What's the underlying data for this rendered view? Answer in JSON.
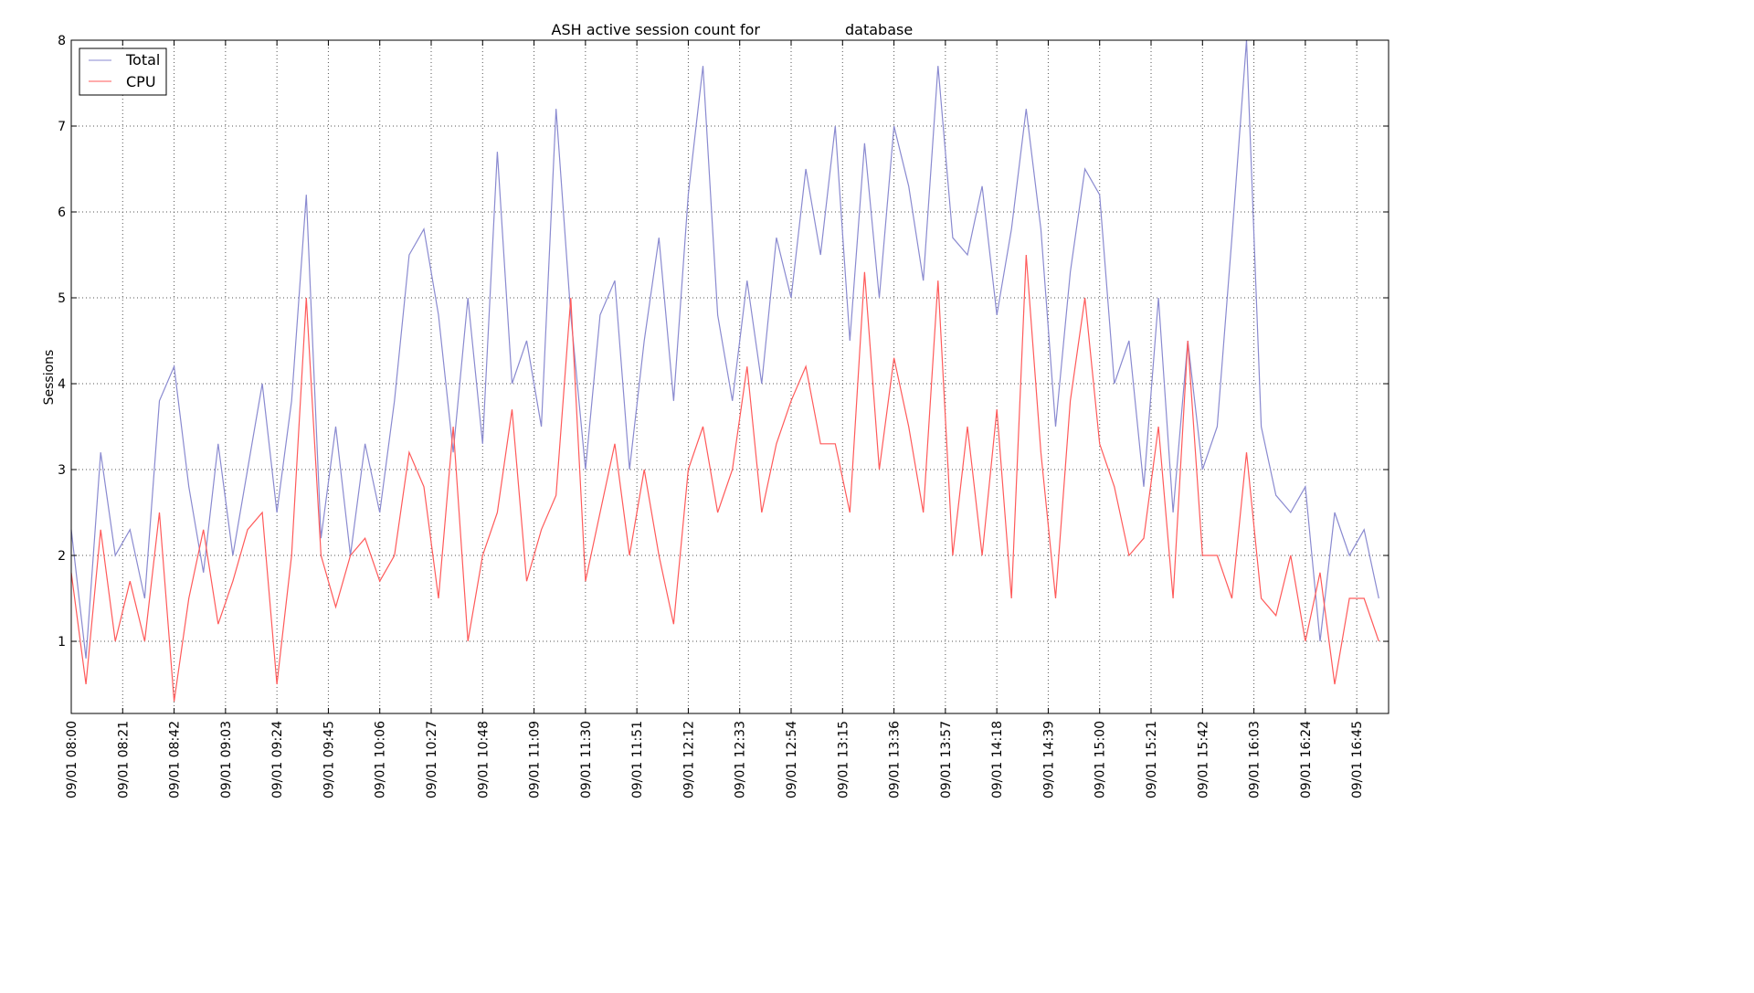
{
  "chart_data": {
    "type": "line",
    "title_prefix": "ASH active session count for",
    "title_suffix": "database",
    "xlabel": "",
    "ylabel": "Sessions",
    "date_prefix": "09/01",
    "xlim": [
      "08:00",
      "16:58"
    ],
    "ylim": [
      0.16,
      8
    ],
    "y_ticks": [
      1,
      2,
      3,
      4,
      5,
      6,
      7,
      8
    ],
    "x_ticks": [
      "09/01 08:00",
      "09/01 08:21",
      "09/01 08:42",
      "09/01 09:03",
      "09/01 09:24",
      "09/01 09:45",
      "09/01 10:06",
      "09/01 10:27",
      "09/01 10:48",
      "09/01 11:09",
      "09/01 11:30",
      "09/01 11:51",
      "09/01 12:12",
      "09/01 12:33",
      "09/01 12:54",
      "09/01 13:15",
      "09/01 13:36",
      "09/01 13:57",
      "09/01 14:18",
      "09/01 14:39",
      "09/01 15:00",
      "09/01 15:21",
      "09/01 15:42",
      "09/01 16:03",
      "09/01 16:24",
      "09/01 16:45"
    ],
    "grid": true,
    "legend_position": "top-left",
    "x": [
      "08:00",
      "08:06",
      "08:12",
      "08:18",
      "08:24",
      "08:30",
      "08:36",
      "08:42",
      "08:48",
      "08:54",
      "09:00",
      "09:06",
      "09:12",
      "09:18",
      "09:24",
      "09:30",
      "09:36",
      "09:42",
      "09:48",
      "09:54",
      "10:00",
      "10:06",
      "10:12",
      "10:18",
      "10:24",
      "10:30",
      "10:36",
      "10:42",
      "10:48",
      "10:54",
      "11:00",
      "11:06",
      "11:12",
      "11:18",
      "11:24",
      "11:30",
      "11:36",
      "11:42",
      "11:48",
      "11:54",
      "12:00",
      "12:06",
      "12:12",
      "12:18",
      "12:24",
      "12:30",
      "12:36",
      "12:42",
      "12:48",
      "12:54",
      "13:00",
      "13:06",
      "13:12",
      "13:18",
      "13:24",
      "13:30",
      "13:36",
      "13:42",
      "13:48",
      "13:54",
      "14:00",
      "14:06",
      "14:12",
      "14:18",
      "14:24",
      "14:30",
      "14:36",
      "14:42",
      "14:48",
      "14:54",
      "15:00",
      "15:06",
      "15:12",
      "15:18",
      "15:24",
      "15:30",
      "15:36",
      "15:42",
      "15:48",
      "15:54",
      "16:00",
      "16:06",
      "16:12",
      "16:18",
      "16:24",
      "16:30",
      "16:36",
      "16:42",
      "16:48",
      "16:54"
    ],
    "series": [
      {
        "name": "Total",
        "color": "#8a8ad0",
        "values": [
          2.3,
          0.8,
          3.2,
          2.0,
          2.3,
          1.5,
          3.8,
          4.2,
          2.8,
          1.8,
          3.3,
          2.0,
          3.0,
          4.0,
          2.5,
          3.8,
          6.2,
          2.2,
          3.5,
          2.0,
          3.3,
          2.5,
          3.8,
          5.5,
          5.8,
          4.8,
          3.2,
          5.0,
          3.3,
          6.7,
          4.0,
          4.5,
          3.5,
          7.2,
          4.8,
          3.0,
          4.8,
          5.2,
          3.0,
          4.5,
          5.7,
          3.8,
          6.2,
          7.7,
          4.8,
          3.8,
          5.2,
          4.0,
          5.7,
          5.0,
          6.5,
          5.5,
          7.0,
          4.5,
          6.8,
          5.0,
          7.0,
          6.3,
          5.2,
          7.7,
          5.7,
          5.5,
          6.3,
          4.8,
          5.8,
          7.2,
          5.8,
          3.5,
          5.3,
          6.5,
          6.2,
          4.0,
          4.5,
          2.8,
          5.0,
          2.5,
          4.5,
          3.0,
          3.5,
          5.7,
          8.0,
          3.5,
          2.7,
          2.5,
          2.8,
          1.0,
          2.5,
          2.0,
          2.3,
          1.5
        ]
      },
      {
        "name": "CPU",
        "color": "#ff5a5a",
        "values": [
          1.8,
          0.5,
          2.3,
          1.0,
          1.7,
          1.0,
          2.5,
          0.3,
          1.5,
          2.3,
          1.2,
          1.7,
          2.3,
          2.5,
          0.5,
          2.0,
          5.0,
          2.0,
          1.4,
          2.0,
          2.2,
          1.7,
          2.0,
          3.2,
          2.8,
          1.5,
          3.5,
          1.0,
          2.0,
          2.5,
          3.7,
          1.7,
          2.3,
          2.7,
          5.0,
          1.7,
          2.5,
          3.3,
          2.0,
          3.0,
          2.0,
          1.2,
          3.0,
          3.5,
          2.5,
          3.0,
          4.2,
          2.5,
          3.3,
          3.8,
          4.2,
          3.3,
          3.3,
          2.5,
          5.3,
          3.0,
          4.3,
          3.5,
          2.5,
          5.2,
          2.0,
          3.5,
          2.0,
          3.7,
          1.5,
          5.5,
          3.2,
          1.5,
          3.8,
          5.0,
          3.3,
          2.8,
          2.0,
          2.2,
          3.5,
          1.5,
          4.5,
          2.0,
          2.0,
          1.5,
          3.2,
          1.5,
          1.3,
          2.0,
          1.0,
          1.8,
          0.5,
          1.5,
          1.5,
          1.0
        ]
      }
    ]
  }
}
